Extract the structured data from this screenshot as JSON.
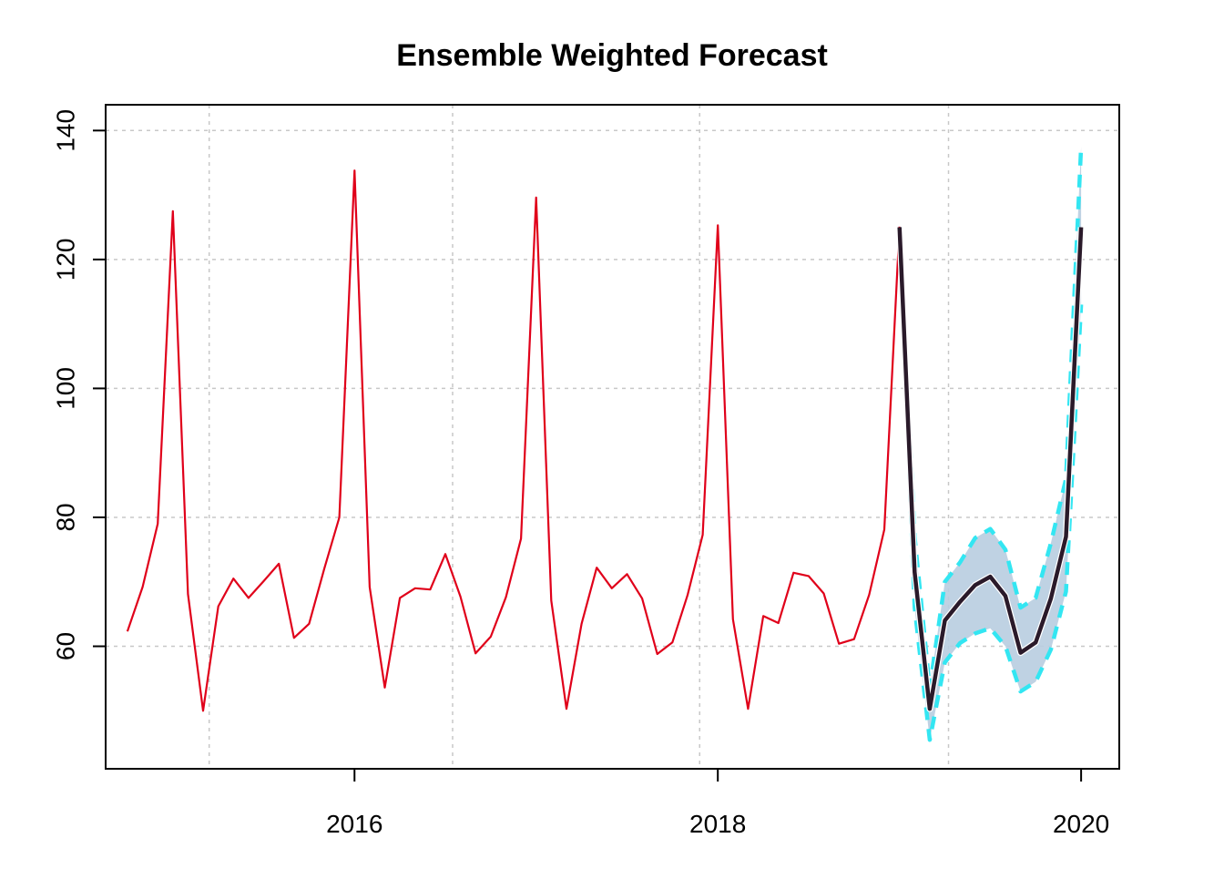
{
  "chart_data": {
    "type": "line",
    "title": "Ensemble Weighted Forecast",
    "xlabel": "",
    "ylabel": "",
    "xlim": [
      2014.63,
      2020.21
    ],
    "ylim": [
      41,
      144
    ],
    "x_ticks": [
      2016,
      2018,
      2020
    ],
    "y_ticks": [
      60,
      80,
      100,
      120,
      140
    ],
    "grid": true,
    "grid_x": [
      2015.2,
      2016.54,
      2017.9,
      2019.27
    ],
    "grid_y": [
      60,
      80,
      100,
      120,
      140
    ],
    "colors": {
      "history": "#e0001a",
      "forecast": "#2a1a2a",
      "bounds": "#33e6f2",
      "band": "#b8cde0",
      "grid": "#c8c8c8"
    },
    "series": [
      {
        "kind": "history",
        "start_year": 2014,
        "start_month": 10,
        "values": [
          62.3,
          69.2,
          79.0,
          127.5,
          68.1,
          50.0,
          66.2,
          70.5,
          67.5,
          70.1,
          72.8,
          61.3,
          63.5,
          72.0,
          80.0,
          133.8,
          69.2,
          53.6,
          67.5,
          69.0,
          68.8,
          74.3,
          67.7,
          58.9,
          61.5,
          67.6,
          76.7,
          129.6,
          67.1,
          50.3,
          63.5,
          72.2,
          69.0,
          71.2,
          67.4,
          58.8,
          60.6,
          67.9,
          77.3,
          125.3,
          64.2,
          50.3,
          64.7,
          63.6,
          71.4,
          70.9,
          68.2,
          60.4,
          61.1,
          68.0,
          78.1,
          125.1
        ]
      },
      {
        "kind": "forecast",
        "start_year": 2019,
        "start_month": 1,
        "values": [
          125.0,
          71.5,
          50.3,
          64.0,
          66.9,
          69.5,
          70.8,
          67.8,
          59.0,
          60.6,
          67.4,
          77.0,
          125.0
        ]
      },
      {
        "kind": "upper",
        "start_year": 2019,
        "start_month": 1,
        "values": [
          125.0,
          77.0,
          53.5,
          70.0,
          73.0,
          76.8,
          78.2,
          75.0,
          66.0,
          67.5,
          76.0,
          86.0,
          137.5
        ]
      },
      {
        "kind": "lower",
        "start_year": 2019,
        "start_month": 1,
        "values": [
          125.0,
          66.0,
          45.5,
          57.5,
          60.5,
          62.0,
          62.8,
          60.0,
          53.0,
          54.5,
          59.5,
          68.5,
          113.0
        ]
      }
    ]
  }
}
